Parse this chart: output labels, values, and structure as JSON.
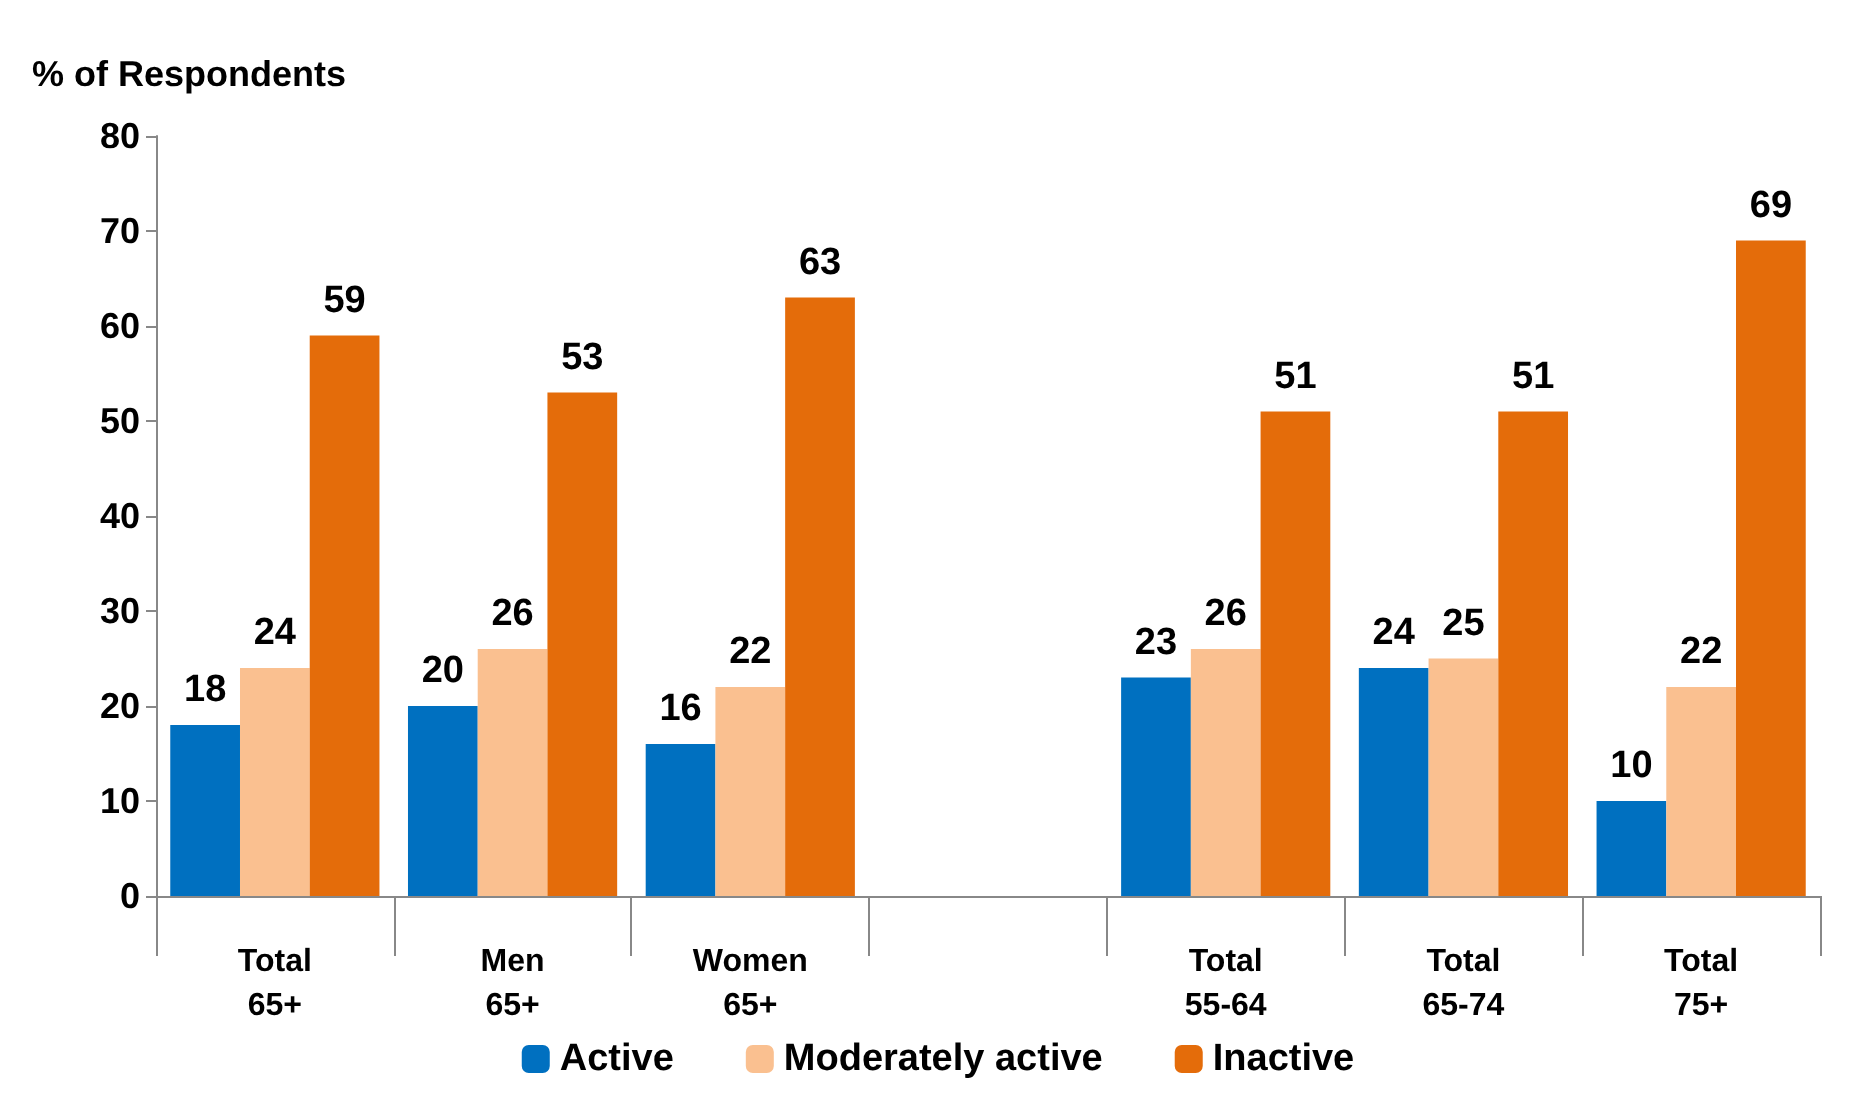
{
  "chart_data": {
    "type": "bar",
    "ylabel": "% of Respondents",
    "categories": [
      "Total\n65+",
      "Men\n65+",
      "Women\n65+",
      null,
      "Total\n55-64",
      "Total\n65-74",
      "Total\n75+"
    ],
    "series": [
      {
        "name": "Active",
        "color": "#0070c0",
        "values": [
          18,
          20,
          16,
          null,
          23,
          24,
          10
        ]
      },
      {
        "name": "Moderately active",
        "color": "#fac090",
        "values": [
          24,
          26,
          22,
          null,
          26,
          25,
          22
        ]
      },
      {
        "name": "Inactive",
        "color": "#e46c0a",
        "values": [
          59,
          53,
          63,
          null,
          51,
          51,
          69
        ]
      }
    ],
    "ylim": [
      0,
      80
    ],
    "yticks": [
      0,
      10,
      20,
      30,
      40,
      50,
      60,
      70,
      80
    ],
    "grid": false,
    "legend": "bottom",
    "data_labels": true
  }
}
